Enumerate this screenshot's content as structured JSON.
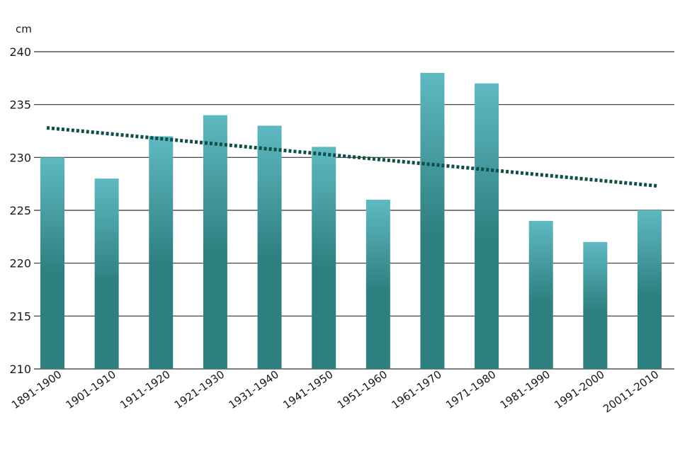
{
  "chart_data": {
    "type": "bar",
    "ylabel": "cm",
    "ylim": [
      210,
      240
    ],
    "yticks": [
      210,
      215,
      220,
      225,
      230,
      235,
      240
    ],
    "grid": true,
    "categories": [
      "1891-1900",
      "1901-1910",
      "1911-1920",
      "1921-1930",
      "1931-1940",
      "1941-1950",
      "1951-1960",
      "1961-1970",
      "1971-1980",
      "1981-1990",
      "1991-2000",
      "20011-2010"
    ],
    "values": [
      230,
      228,
      232,
      234,
      233,
      231,
      226,
      238,
      237,
      224,
      222,
      225
    ],
    "trendline": {
      "style": "dotted",
      "start": 232.8,
      "end": 227.3
    },
    "colors": {
      "bar_light": "#5fb9c1",
      "bar_dark": "#2e7f7f",
      "trend": "#0f4f4a",
      "grid": "#333333"
    }
  }
}
